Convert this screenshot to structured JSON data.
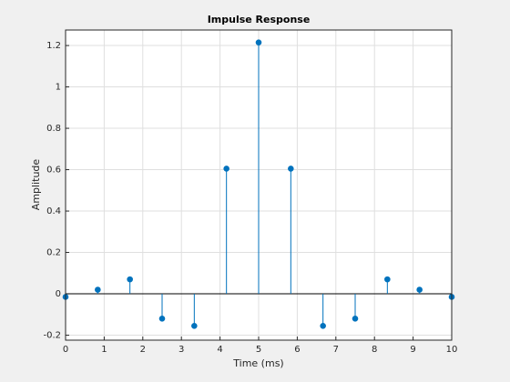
{
  "chart_data": {
    "type": "stem",
    "title": "Impulse Response",
    "x_label": "Time (ms)",
    "y_label": "Amplitude",
    "x": [
      0,
      0.8333,
      1.6667,
      2.5,
      3.3333,
      4.1667,
      5,
      5.8333,
      6.6667,
      7.5,
      8.3333,
      9.1667,
      10
    ],
    "values": [
      -0.015,
      0.02,
      0.07,
      -0.12,
      -0.155,
      0.605,
      1.215,
      0.605,
      -0.155,
      -0.12,
      0.07,
      0.02,
      -0.015
    ],
    "color": "#0072bd",
    "xlim": [
      0,
      10
    ],
    "xticks": [
      0,
      1,
      2,
      3,
      4,
      5,
      6,
      7,
      8,
      9,
      10
    ],
    "ylim": [
      -0.224,
      1.275
    ],
    "yticks": [
      -0.2,
      0,
      0.2,
      0.4,
      0.6,
      0.8,
      1,
      1.2
    ],
    "grid": true
  }
}
